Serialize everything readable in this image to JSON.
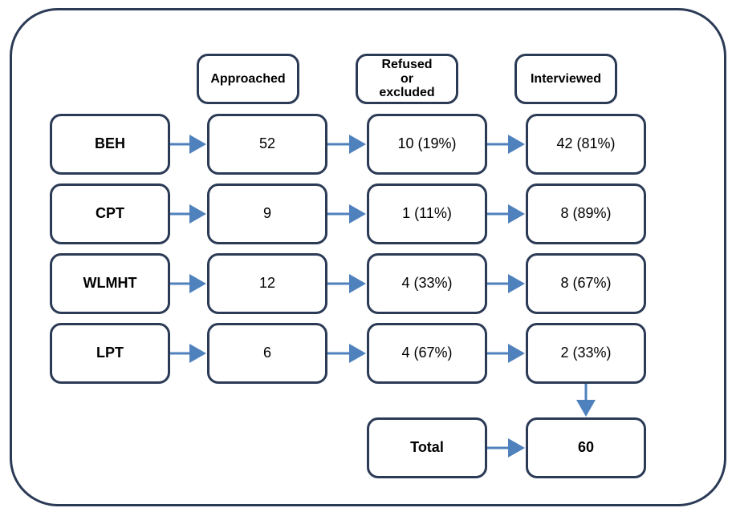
{
  "headers": [
    "Approached",
    "Refused or excluded",
    "Interviewed"
  ],
  "rows": [
    {
      "label": "BEH",
      "cells": [
        "52",
        "10 (19%)",
        "42 (81%)"
      ]
    },
    {
      "label": "CPT",
      "cells": [
        "9",
        "1 (11%)",
        "8 (89%)"
      ]
    },
    {
      "label": "WLMHT",
      "cells": [
        "12",
        "4 (33%)",
        "8 (67%)"
      ]
    },
    {
      "label": "LPT",
      "cells": [
        "6",
        "4 (67%)",
        "2 (33%)"
      ]
    }
  ],
  "total": {
    "label": "Total",
    "value": "60"
  }
}
